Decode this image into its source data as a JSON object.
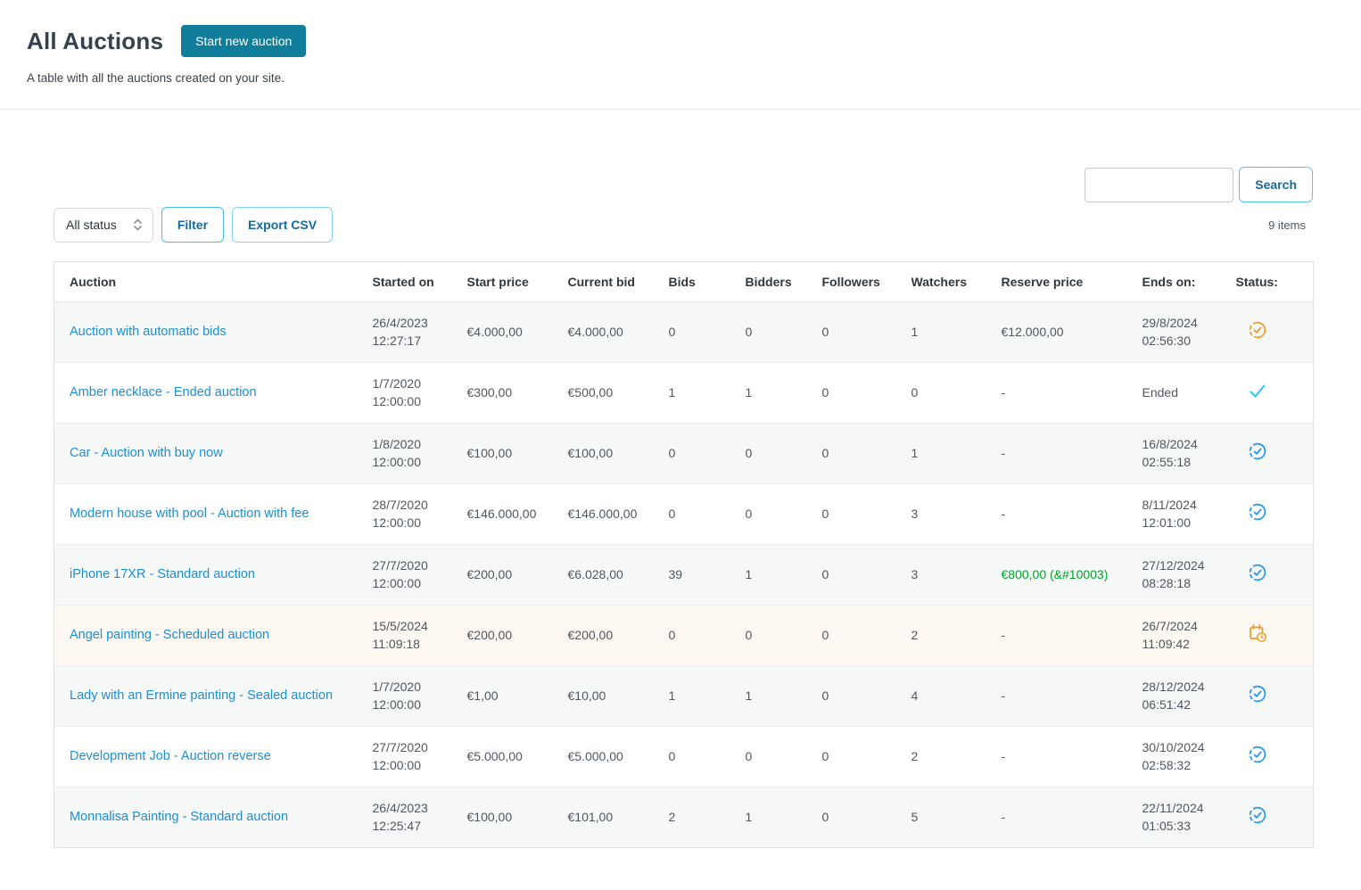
{
  "page": {
    "title": "All Auctions",
    "start_button": "Start new auction",
    "subtitle": "A table with all the auctions created on your site."
  },
  "toolbar": {
    "search_placeholder": "",
    "search_value": "",
    "search_button": "Search",
    "items_count": "9 items",
    "status_filter_value": "All status",
    "filter_button": "Filter",
    "export_button": "Export CSV"
  },
  "colors": {
    "teal": "#107d9b",
    "link": "#1d8fd4",
    "green": "#00a32a",
    "btn-blue": "#15699f",
    "border-cyan": "#55c6ec",
    "cream": "#fdf8f1",
    "icon-orange": "#f59a23",
    "icon-blue": "#2196f3",
    "icon-cyan": "#30c3f2"
  },
  "table": {
    "headers": [
      "Auction",
      "Started on",
      "Start price",
      "Current bid",
      "Bids",
      "Bidders",
      "Followers",
      "Watchers",
      "Reserve price",
      "Ends on:",
      "Status:"
    ],
    "rows": [
      {
        "title": "Auction with automatic bids",
        "started": "26/4/2023 12:27:17",
        "start_price": "€4.000,00",
        "current_bid": "€4.000,00",
        "bids": "0",
        "bidders": "0",
        "followers": "0",
        "watchers": "1",
        "reserve": "€12.000,00",
        "reserve_highlight": false,
        "ends": "29/8/2024 02:56:30",
        "status": {
          "icon": "clock-check",
          "color": "icon-orange"
        },
        "highlight_row": false
      },
      {
        "title": "Amber necklace - Ended auction",
        "started": "1/7/2020 12:00:00",
        "start_price": "€300,00",
        "current_bid": "€500,00",
        "bids": "1",
        "bidders": "1",
        "followers": "0",
        "watchers": "0",
        "reserve": "-",
        "reserve_highlight": false,
        "ends": "Ended",
        "status": {
          "icon": "check",
          "color": "icon-cyan"
        },
        "highlight_row": false
      },
      {
        "title": "Car - Auction with buy now",
        "started": "1/8/2020 12:00:00",
        "start_price": "€100,00",
        "current_bid": "€100,00",
        "bids": "0",
        "bidders": "0",
        "followers": "0",
        "watchers": "1",
        "reserve": "-",
        "reserve_highlight": false,
        "ends": "16/8/2024 02:55:18",
        "status": {
          "icon": "clock-check",
          "color": "icon-blue"
        },
        "highlight_row": false
      },
      {
        "title": "Modern house with pool - Auction with fee",
        "started": "28/7/2020 12:00:00",
        "start_price": "€146.000,00",
        "current_bid": "€146.000,00",
        "bids": "0",
        "bidders": "0",
        "followers": "0",
        "watchers": "3",
        "reserve": "-",
        "reserve_highlight": false,
        "ends": "8/11/2024 12:01:00",
        "status": {
          "icon": "clock-check",
          "color": "icon-blue"
        },
        "highlight_row": false
      },
      {
        "title": "iPhone 17XR - Standard auction",
        "started": "27/7/2020 12:00:00",
        "start_price": "€200,00",
        "current_bid": "€6.028,00",
        "bids": "39",
        "bidders": "1",
        "followers": "0",
        "watchers": "3",
        "reserve": "€800,00 (&#10003)",
        "reserve_highlight": true,
        "ends": "27/12/2024 08:28:18",
        "status": {
          "icon": "clock-check",
          "color": "icon-blue"
        },
        "highlight_row": false
      },
      {
        "title": "Angel painting - Scheduled auction",
        "started": "15/5/2024 11:09:18",
        "start_price": "€200,00",
        "current_bid": "€200,00",
        "bids": "0",
        "bidders": "0",
        "followers": "0",
        "watchers": "2",
        "reserve": "-",
        "reserve_highlight": false,
        "ends": "26/7/2024 11:09:42",
        "status": {
          "icon": "calendar-clock",
          "color": "icon-orange"
        },
        "highlight_row": true
      },
      {
        "title": "Lady with an Ermine painting - Sealed auction",
        "started": "1/7/2020 12:00:00",
        "start_price": "€1,00",
        "current_bid": "€10,00",
        "bids": "1",
        "bidders": "1",
        "followers": "0",
        "watchers": "4",
        "reserve": "-",
        "reserve_highlight": false,
        "ends": "28/12/2024 06:51:42",
        "status": {
          "icon": "clock-check",
          "color": "icon-blue"
        },
        "highlight_row": false
      },
      {
        "title": "Development Job - Auction reverse",
        "started": "27/7/2020 12:00:00",
        "start_price": "€5.000,00",
        "current_bid": "€5.000,00",
        "bids": "0",
        "bidders": "0",
        "followers": "0",
        "watchers": "2",
        "reserve": "-",
        "reserve_highlight": false,
        "ends": "30/10/2024 02:58:32",
        "status": {
          "icon": "clock-check",
          "color": "icon-blue"
        },
        "highlight_row": false
      },
      {
        "title": "Monnalisa Painting - Standard auction",
        "started": "26/4/2023 12:25:47",
        "start_price": "€100,00",
        "current_bid": "€101,00",
        "bids": "2",
        "bidders": "1",
        "followers": "0",
        "watchers": "5",
        "reserve": "-",
        "reserve_highlight": false,
        "ends": "22/11/2024 01:05:33",
        "status": {
          "icon": "clock-check",
          "color": "icon-blue"
        },
        "highlight_row": false
      }
    ]
  }
}
